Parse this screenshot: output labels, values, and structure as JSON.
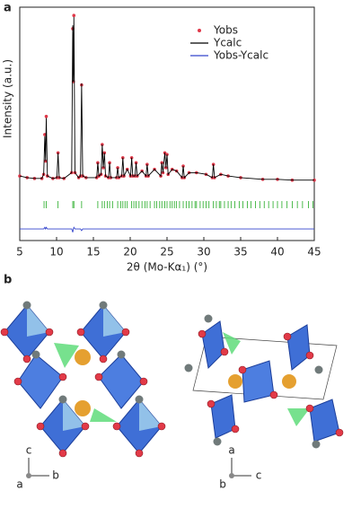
{
  "chart_data": {
    "type": "line",
    "panel_label": "a",
    "ylabel": "Intensity (a.u.)",
    "xlabel": "2θ (Mo-Kα₁) (°)",
    "xlim": [
      5,
      45
    ],
    "xticks": [
      5,
      10,
      15,
      20,
      25,
      30,
      35,
      40,
      45
    ],
    "ylim": [
      -36,
      105
    ],
    "legend": "upper right",
    "x": [
      5,
      6,
      7,
      8,
      8.25,
      8.4,
      8.5,
      8.6,
      8.75,
      9.5,
      10.05,
      10.2,
      10.35,
      11,
      12.05,
      12.2,
      12.28,
      12.35,
      12.5,
      13,
      13.25,
      13.4,
      13.55,
      14,
      15.45,
      15.6,
      15.75,
      16.05,
      16.2,
      16.35,
      16.5,
      16.65,
      17.05,
      17.2,
      17.35,
      18.15,
      18.3,
      18.45,
      18.85,
      19,
      19.15,
      19.6,
      20.05,
      20.2,
      20.35,
      20.65,
      20.8,
      20.95,
      21.6,
      22.15,
      22.3,
      22.45,
      23.3,
      24.15,
      24.3,
      24.45,
      24.7,
      24.85,
      25,
      25.15,
      25.7,
      26.3,
      27.05,
      27.2,
      27.35,
      28,
      29,
      30.3,
      31.15,
      31.3,
      31.45,
      32.3,
      33.3,
      35,
      38,
      40,
      42,
      45
    ],
    "series": [
      {
        "name": "Yobs",
        "color": "#e0394a",
        "style": "points",
        "values": [
          3,
          2,
          1.5,
          1.5,
          4,
          28,
          12,
          39,
          3,
          1.5,
          2,
          17,
          2,
          1.5,
          5,
          92,
          60,
          100,
          5,
          2,
          3,
          58,
          3,
          2,
          2,
          11,
          3,
          4,
          22,
          8,
          17,
          3,
          2,
          11,
          2,
          2,
          8,
          2,
          3,
          14,
          3,
          7,
          3,
          14,
          3,
          3,
          11,
          3,
          6,
          3,
          10,
          3,
          7,
          3,
          11,
          5,
          17,
          8,
          16,
          4,
          7,
          6,
          2,
          9,
          2,
          5,
          5,
          4,
          2,
          10,
          2,
          4,
          3,
          2,
          1,
          1,
          0.5,
          0.5
        ]
      },
      {
        "name": "Ycalc",
        "color": "#000000",
        "style": "line",
        "values": [
          3,
          2,
          1.5,
          1.5,
          4,
          27,
          12,
          38,
          3,
          1.5,
          2,
          17,
          2,
          1.5,
          5,
          94,
          60,
          99,
          5,
          2,
          3,
          59,
          3,
          2,
          2,
          11,
          3,
          4,
          22,
          8,
          17,
          3,
          2,
          11,
          2,
          2,
          8,
          2,
          3,
          14,
          3,
          7,
          3,
          14,
          3,
          3,
          11,
          3,
          6,
          3,
          10,
          3,
          7,
          3,
          11,
          5,
          17,
          8,
          16,
          4,
          7,
          6,
          2,
          9,
          2,
          5,
          5,
          4,
          2,
          10,
          2,
          4,
          3,
          2,
          1,
          1,
          0.5,
          0.5
        ]
      },
      {
        "name": "Yobs-Ycalc",
        "color": "#3344cc",
        "style": "line",
        "values": [
          -29,
          -29,
          -29,
          -29,
          -29,
          -28,
          -29,
          -28,
          -29,
          -29,
          -29,
          -29,
          -29,
          -29,
          -29,
          -31,
          -29,
          -28,
          -29,
          -29,
          -29,
          -30,
          -29,
          -29,
          -29,
          -29,
          -29,
          -29,
          -29,
          -29,
          -29,
          -29,
          -29,
          -29,
          -29,
          -29,
          -29,
          -29,
          -29,
          -29,
          -29,
          -29,
          -29,
          -29,
          -29,
          -29,
          -29,
          -29,
          -29,
          -29,
          -29,
          -29,
          -29,
          -29,
          -29,
          -29,
          -29,
          -29,
          -29,
          -29,
          -29,
          -29,
          -29,
          -29,
          -29,
          -29,
          -29,
          -29,
          -29,
          -29,
          -29,
          -29,
          -29,
          -29,
          -29,
          -29,
          -29,
          -29
        ]
      }
    ],
    "reflections": {
      "color": "#22aa22",
      "x": [
        8.3,
        8.6,
        10.2,
        12.2,
        12.35,
        13.4,
        15.6,
        16.2,
        16.5,
        16.9,
        17.2,
        17.6,
        18.3,
        18.7,
        19.0,
        19.3,
        19.6,
        20.2,
        20.5,
        20.8,
        21.2,
        21.6,
        22.0,
        22.3,
        22.7,
        23.3,
        23.6,
        24.0,
        24.3,
        24.7,
        25.0,
        25.4,
        25.7,
        26.0,
        26.3,
        26.7,
        27.2,
        27.6,
        28.0,
        28.4,
        28.8,
        29.0,
        29.5,
        29.9,
        30.3,
        30.7,
        31.3,
        31.7,
        32.1,
        32.3,
        32.8,
        33.3,
        33.7,
        34.2,
        34.8,
        35.3,
        35.9,
        36.4,
        37.0,
        37.6,
        38.2,
        38.8,
        39.4,
        40.0,
        40.6,
        41.3,
        42.0,
        42.7,
        43.4,
        44.2,
        44.8
      ]
    }
  },
  "panel_b": {
    "label": "b",
    "left_axes": [
      "c",
      "a",
      "b"
    ],
    "right_axes": [
      "a",
      "b",
      "c"
    ]
  }
}
